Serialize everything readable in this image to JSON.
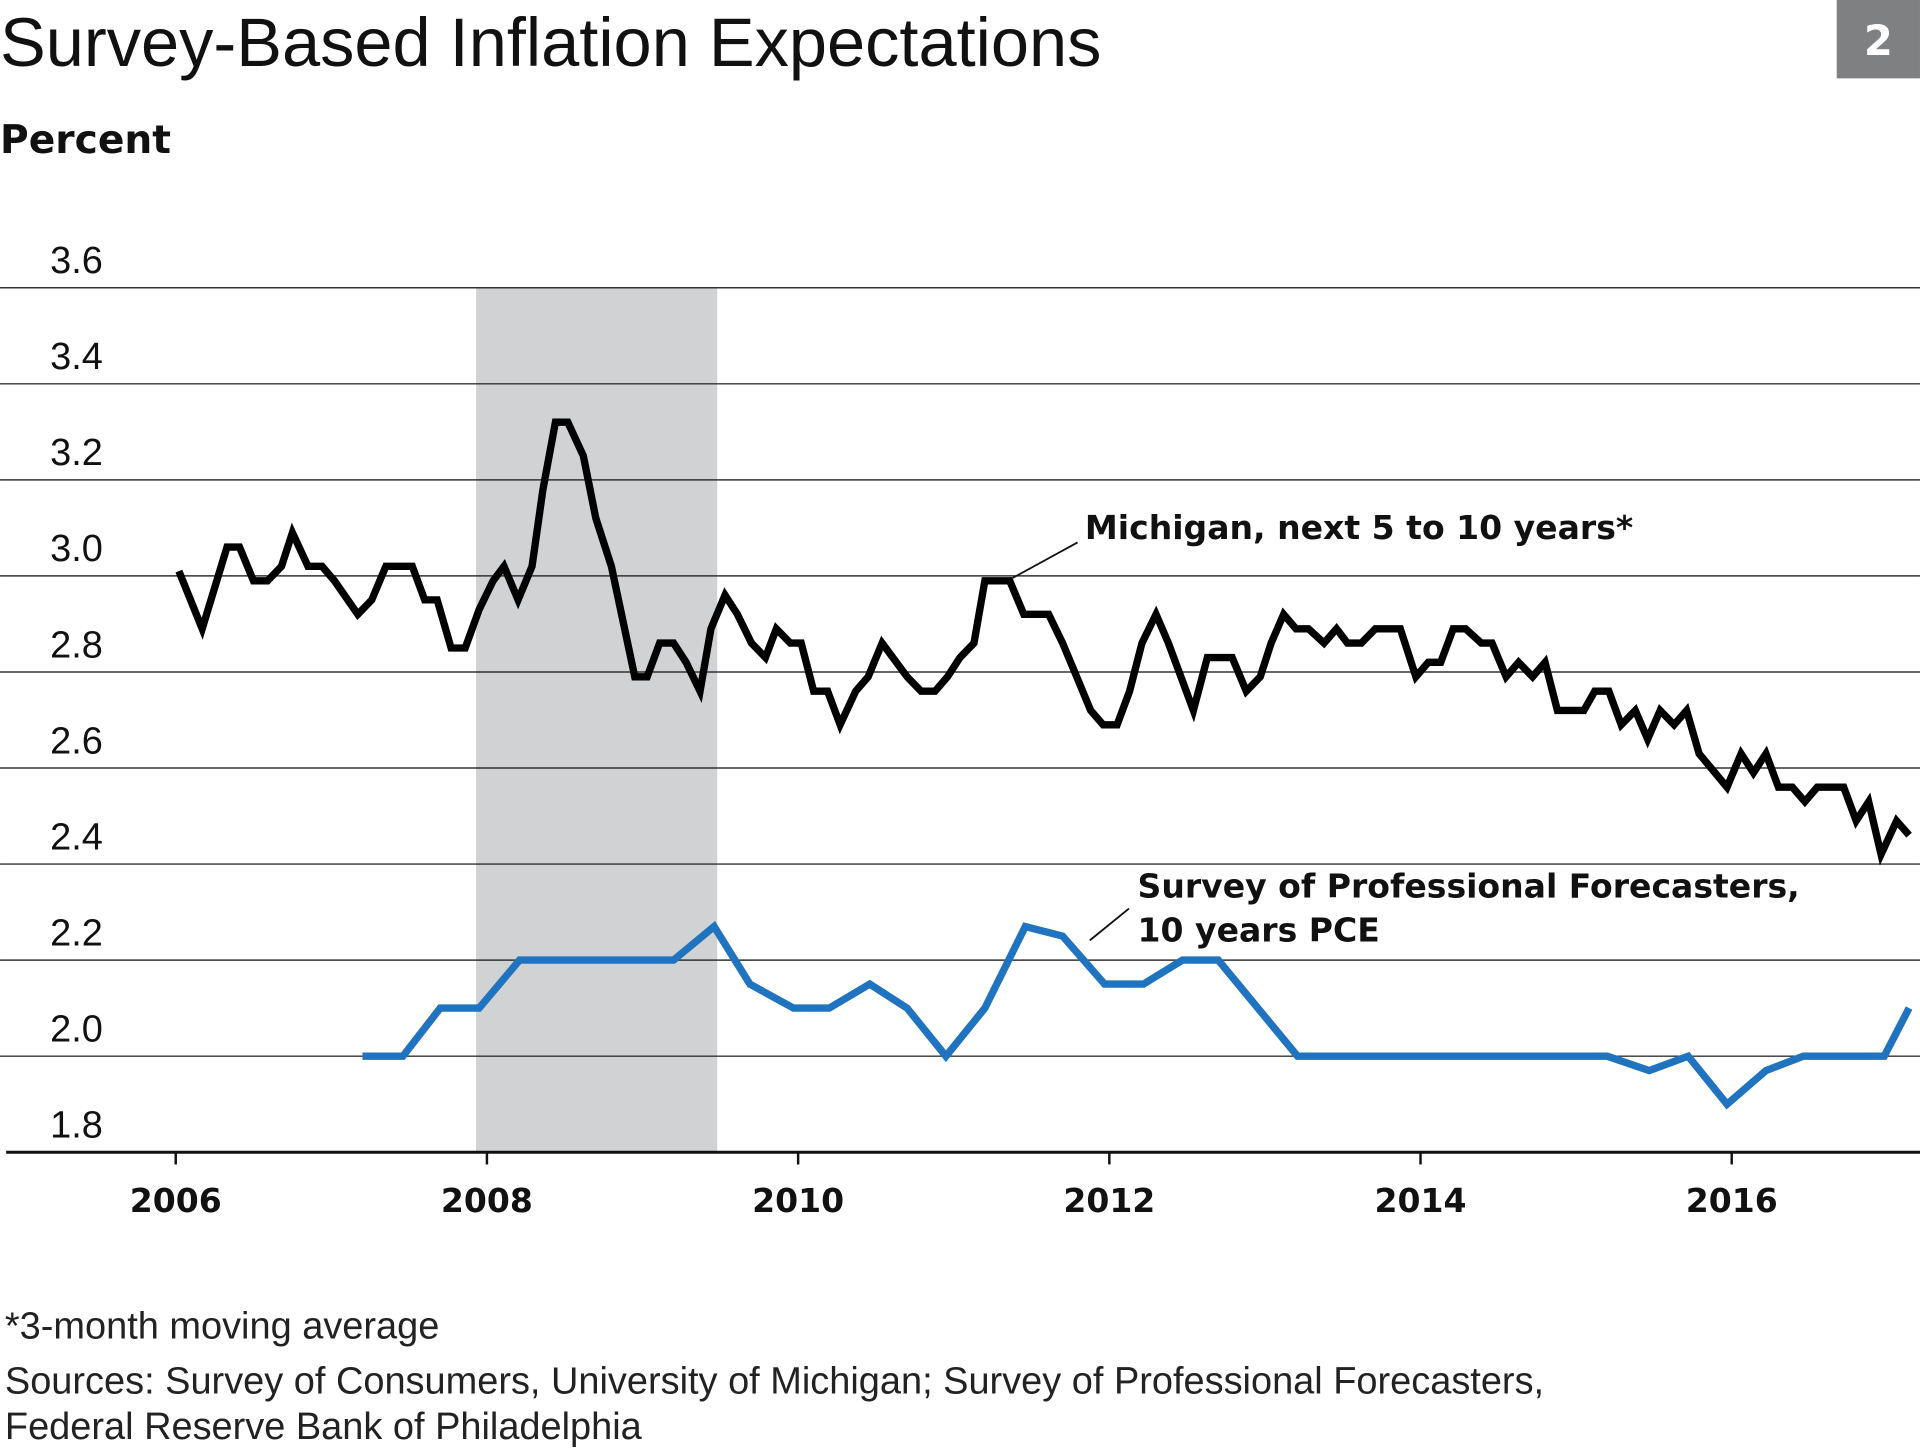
{
  "chart_data": {
    "type": "line",
    "title": "Survey-Based Inflation Expectations",
    "figure_number": "2",
    "y_label": "Percent",
    "footnote": "*3-month moving average",
    "source": [
      "Sources: Survey of Consumers, University of Michigan; Survey of Professional Forecasters,",
      "Federal Reserve Bank of Philadelphia"
    ],
    "xlim": [
      2004.91,
      2017.21
    ],
    "xticks": [
      2006,
      2008,
      2010,
      2012,
      2014,
      2016
    ],
    "ylim": [
      1.8,
      3.6
    ],
    "yticks": [
      {
        "value": 1.8,
        "label": "1.8"
      },
      {
        "value": 2,
        "label": "2.0"
      },
      2.2,
      2.4,
      2.6,
      2.8,
      {
        "value": 3,
        "label": "3.0"
      },
      3.2,
      3.4,
      3.6
    ],
    "grid": true,
    "shaded_periods": [
      [
        2007.93,
        2009.48
      ]
    ],
    "shade_color": "#d1d2d4",
    "series": [
      {
        "name": "Michigan, next 5 to 10 years*",
        "color": "#000000",
        "x": [
          2006.02,
          2006.17,
          2006.33,
          2006.41,
          2006.5,
          2006.59,
          2006.68,
          2006.75,
          2006.85,
          2006.94,
          2007.02,
          2007.17,
          2007.26,
          2007.35,
          2007.52,
          2007.6,
          2007.68,
          2007.77,
          2007.86,
          2007.95,
          2008.04,
          2008.11,
          2008.2,
          2008.29,
          2008.36,
          2008.44,
          2008.52,
          2008.62,
          2008.7,
          2008.8,
          2008.95,
          2009.03,
          2009.11,
          2009.2,
          2009.28,
          2009.37,
          2009.44,
          2009.53,
          2009.61,
          2009.7,
          2009.79,
          2009.86,
          2009.95,
          2010.02,
          2010.1,
          2010.19,
          2010.27,
          2010.37,
          2010.45,
          2010.54,
          2010.7,
          2010.79,
          2010.88,
          2010.96,
          2011.04,
          2011.13,
          2011.2,
          2011.36,
          2011.45,
          2011.61,
          2011.7,
          2011.79,
          2011.88,
          2011.96,
          2012.05,
          2012.13,
          2012.21,
          2012.3,
          2012.38,
          2012.46,
          2012.54,
          2012.63,
          2012.79,
          2012.88,
          2012.97,
          2013.04,
          2013.12,
          2013.2,
          2013.28,
          2013.38,
          2013.46,
          2013.53,
          2013.62,
          2013.71,
          2013.87,
          2013.97,
          2014.05,
          2014.13,
          2014.21,
          2014.29,
          2014.39,
          2014.46,
          2014.55,
          2014.63,
          2014.72,
          2014.8,
          2014.88,
          2015.05,
          2015.12,
          2015.21,
          2015.29,
          2015.38,
          2015.46,
          2015.54,
          2015.63,
          2015.71,
          2015.79,
          2015.97,
          2016.06,
          2016.14,
          2016.22,
          2016.3,
          2016.39,
          2016.47,
          2016.55,
          2016.72,
          2016.8,
          2016.88,
          2016.96,
          2017.06,
          2017.14
        ],
        "values": [
          3.01,
          2.89,
          3.06,
          3.06,
          2.99,
          2.99,
          3.02,
          3.09,
          3.02,
          3.02,
          2.99,
          2.92,
          2.95,
          3.02,
          3.02,
          2.95,
          2.95,
          2.85,
          2.85,
          2.93,
          2.99,
          3.02,
          2.95,
          3.02,
          3.18,
          3.32,
          3.32,
          3.25,
          3.12,
          3.02,
          2.79,
          2.79,
          2.86,
          2.86,
          2.82,
          2.76,
          2.89,
          2.96,
          2.92,
          2.86,
          2.83,
          2.89,
          2.86,
          2.86,
          2.76,
          2.76,
          2.69,
          2.76,
          2.79,
          2.86,
          2.79,
          2.76,
          2.76,
          2.79,
          2.83,
          2.86,
          2.99,
          2.99,
          2.92,
          2.92,
          2.86,
          2.79,
          2.72,
          2.69,
          2.69,
          2.76,
          2.86,
          2.92,
          2.86,
          2.79,
          2.72,
          2.83,
          2.83,
          2.76,
          2.79,
          2.86,
          2.92,
          2.89,
          2.89,
          2.86,
          2.89,
          2.86,
          2.86,
          2.89,
          2.89,
          2.79,
          2.82,
          2.82,
          2.89,
          2.89,
          2.86,
          2.86,
          2.79,
          2.82,
          2.79,
          2.82,
          2.72,
          2.72,
          2.76,
          2.76,
          2.69,
          2.72,
          2.66,
          2.72,
          2.69,
          2.72,
          2.63,
          2.56,
          2.63,
          2.59,
          2.63,
          2.56,
          2.56,
          2.53,
          2.56,
          2.56,
          2.49,
          2.53,
          2.42,
          2.49,
          2.46
        ]
      },
      {
        "name": "Survey of Professional Forecasters, 10 years PCE",
        "color": "#1f73bf",
        "x": [
          2007.2,
          2007.46,
          2007.7,
          2007.95,
          2008.21,
          2009.2,
          2009.46,
          2009.69,
          2009.97,
          2010.2,
          2010.46,
          2010.7,
          2010.95,
          2011.2,
          2011.46,
          2011.7,
          2011.97,
          2012.22,
          2012.47,
          2012.7,
          2013.21,
          2015.2,
          2015.47,
          2015.72,
          2015.97,
          2016.22,
          2016.46,
          2016.98,
          2017.14
        ],
        "values": [
          2.0,
          2.0,
          2.1,
          2.1,
          2.2,
          2.2,
          2.27,
          2.15,
          2.1,
          2.1,
          2.15,
          2.1,
          2.0,
          2.1,
          2.27,
          2.25,
          2.15,
          2.15,
          2.2,
          2.2,
          2.0,
          2.0,
          1.97,
          2.0,
          1.9,
          1.97,
          2.0,
          2.0,
          2.1
        ]
      }
    ]
  }
}
